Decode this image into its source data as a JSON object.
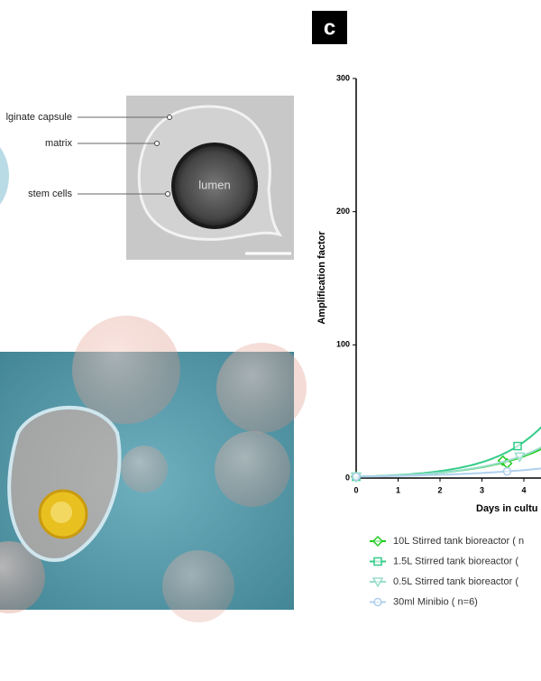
{
  "panel_label": "c",
  "diagram": {
    "labels": [
      "lginate capsule",
      "matrix",
      "stem cells"
    ],
    "inner_label": "lumen"
  },
  "chart_data": {
    "type": "scatter",
    "ylabel": "Amplification factor",
    "xlabel": "Days in cultu",
    "xlim": [
      0,
      10
    ],
    "ylim": [
      0,
      300
    ],
    "xticks": [
      0,
      1,
      2,
      3,
      4
    ],
    "yticks": [
      0,
      100,
      200,
      300
    ],
    "series": [
      {
        "name": "10L Stirred tank bioreactor ( n",
        "color": "#22cc22",
        "marker": "diamond",
        "x": [
          0,
          3.5,
          3.6
        ],
        "values": [
          1,
          13,
          11
        ]
      },
      {
        "name": "1.5L Stirred tank bioreactor (",
        "color": "#33cc88",
        "marker": "square",
        "x": [
          0,
          3.85
        ],
        "values": [
          1,
          24
        ]
      },
      {
        "name": "0.5L Stirred tank bioreactor (",
        "color": "#99ddcc",
        "marker": "triangle",
        "x": [
          0,
          3.9
        ],
        "values": [
          1,
          16
        ]
      },
      {
        "name": "30ml Minibio ( n=6)",
        "color": "#b0d0ee",
        "marker": "circle",
        "x": [
          0,
          3.6
        ],
        "values": [
          1,
          5
        ]
      }
    ]
  }
}
